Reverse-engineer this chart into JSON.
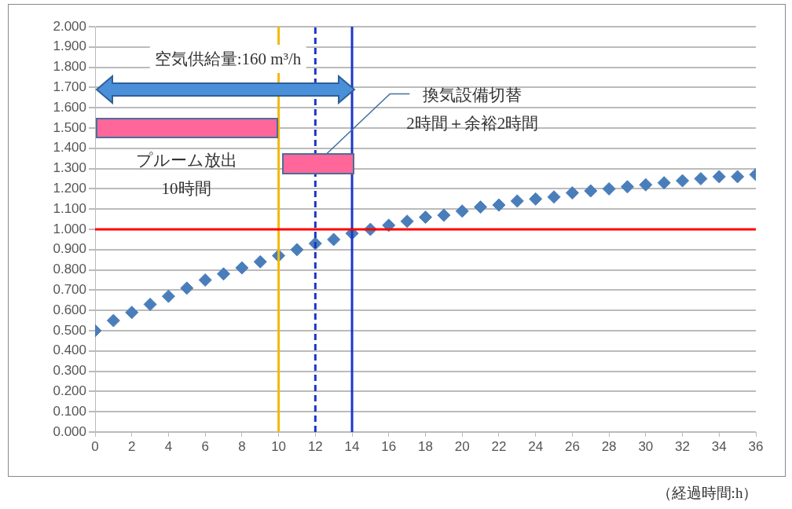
{
  "chart_data": {
    "type": "scatter",
    "xlabel": "（経過時間:h）",
    "x": [
      0,
      1,
      2,
      3,
      4,
      5,
      6,
      7,
      8,
      9,
      10,
      11,
      12,
      13,
      14,
      15,
      16,
      17,
      18,
      19,
      20,
      21,
      22,
      23,
      24,
      25,
      26,
      27,
      28,
      29,
      30,
      31,
      32,
      33,
      34,
      35,
      36
    ],
    "series": [
      {
        "color": "#4a7ebb",
        "values": [
          0.5,
          0.55,
          0.59,
          0.63,
          0.67,
          0.71,
          0.75,
          0.78,
          0.81,
          0.84,
          0.87,
          0.9,
          0.93,
          0.95,
          0.98,
          1.0,
          1.02,
          1.04,
          1.06,
          1.07,
          1.09,
          1.11,
          1.12,
          1.14,
          1.15,
          1.16,
          1.18,
          1.19,
          1.2,
          1.21,
          1.22,
          1.23,
          1.24,
          1.25,
          1.26,
          1.26,
          1.27
        ]
      }
    ],
    "xlim": [
      0,
      36
    ],
    "xticks": [
      0,
      2,
      4,
      6,
      8,
      10,
      12,
      14,
      16,
      18,
      20,
      22,
      24,
      26,
      28,
      30,
      32,
      34,
      36
    ],
    "ylim": [
      0,
      2
    ],
    "yticks": [
      {
        "value": 0,
        "label": "0.000"
      },
      {
        "value": 0.1,
        "label": "0.100"
      },
      {
        "value": 0.2,
        "label": "0.200"
      },
      {
        "value": 0.3,
        "label": "0.300"
      },
      {
        "value": 0.4,
        "label": "0.400"
      },
      {
        "value": 0.5,
        "label": "0.500"
      },
      {
        "value": 0.6,
        "label": "0.600"
      },
      {
        "value": 0.7,
        "label": "0.700"
      },
      {
        "value": 0.8,
        "label": "0.800"
      },
      {
        "value": 0.9,
        "label": "0.900"
      },
      {
        "value": 1,
        "label": "1.000"
      },
      {
        "value": 1.1,
        "label": "1.100"
      },
      {
        "value": 1.2,
        "label": "1.200"
      },
      {
        "value": 1.3,
        "label": "1.300"
      },
      {
        "value": 1.4,
        "label": "1.400"
      },
      {
        "value": 1.5,
        "label": "1.500"
      },
      {
        "value": 1.6,
        "label": "1.600"
      },
      {
        "value": 1.7,
        "label": "1.700"
      },
      {
        "value": 1.8,
        "label": "1.800"
      },
      {
        "value": 1.9,
        "label": "1.900"
      },
      {
        "value": 2,
        "label": "2.000"
      }
    ],
    "ref_lines": [
      {
        "axis": "x",
        "value": 10,
        "color": "#f5b800",
        "line_style": "solid"
      },
      {
        "axis": "x",
        "value": 12,
        "color": "#1a36c8",
        "line_style": "dashed"
      },
      {
        "axis": "x",
        "value": 14,
        "color": "#1a36c8",
        "line_style": "solid"
      },
      {
        "axis": "y",
        "value": 1,
        "color": "#ff0000",
        "line_style": "solid"
      }
    ],
    "annotations": [
      "空気供給量:160 m³/h",
      "プルーム放出\n10時間",
      {
        "text": "換気設備切替\n2時間＋余裕2時間",
        "x": 12,
        "y": 1.32
      }
    ],
    "grid": "y",
    "marker": "diamond"
  }
}
